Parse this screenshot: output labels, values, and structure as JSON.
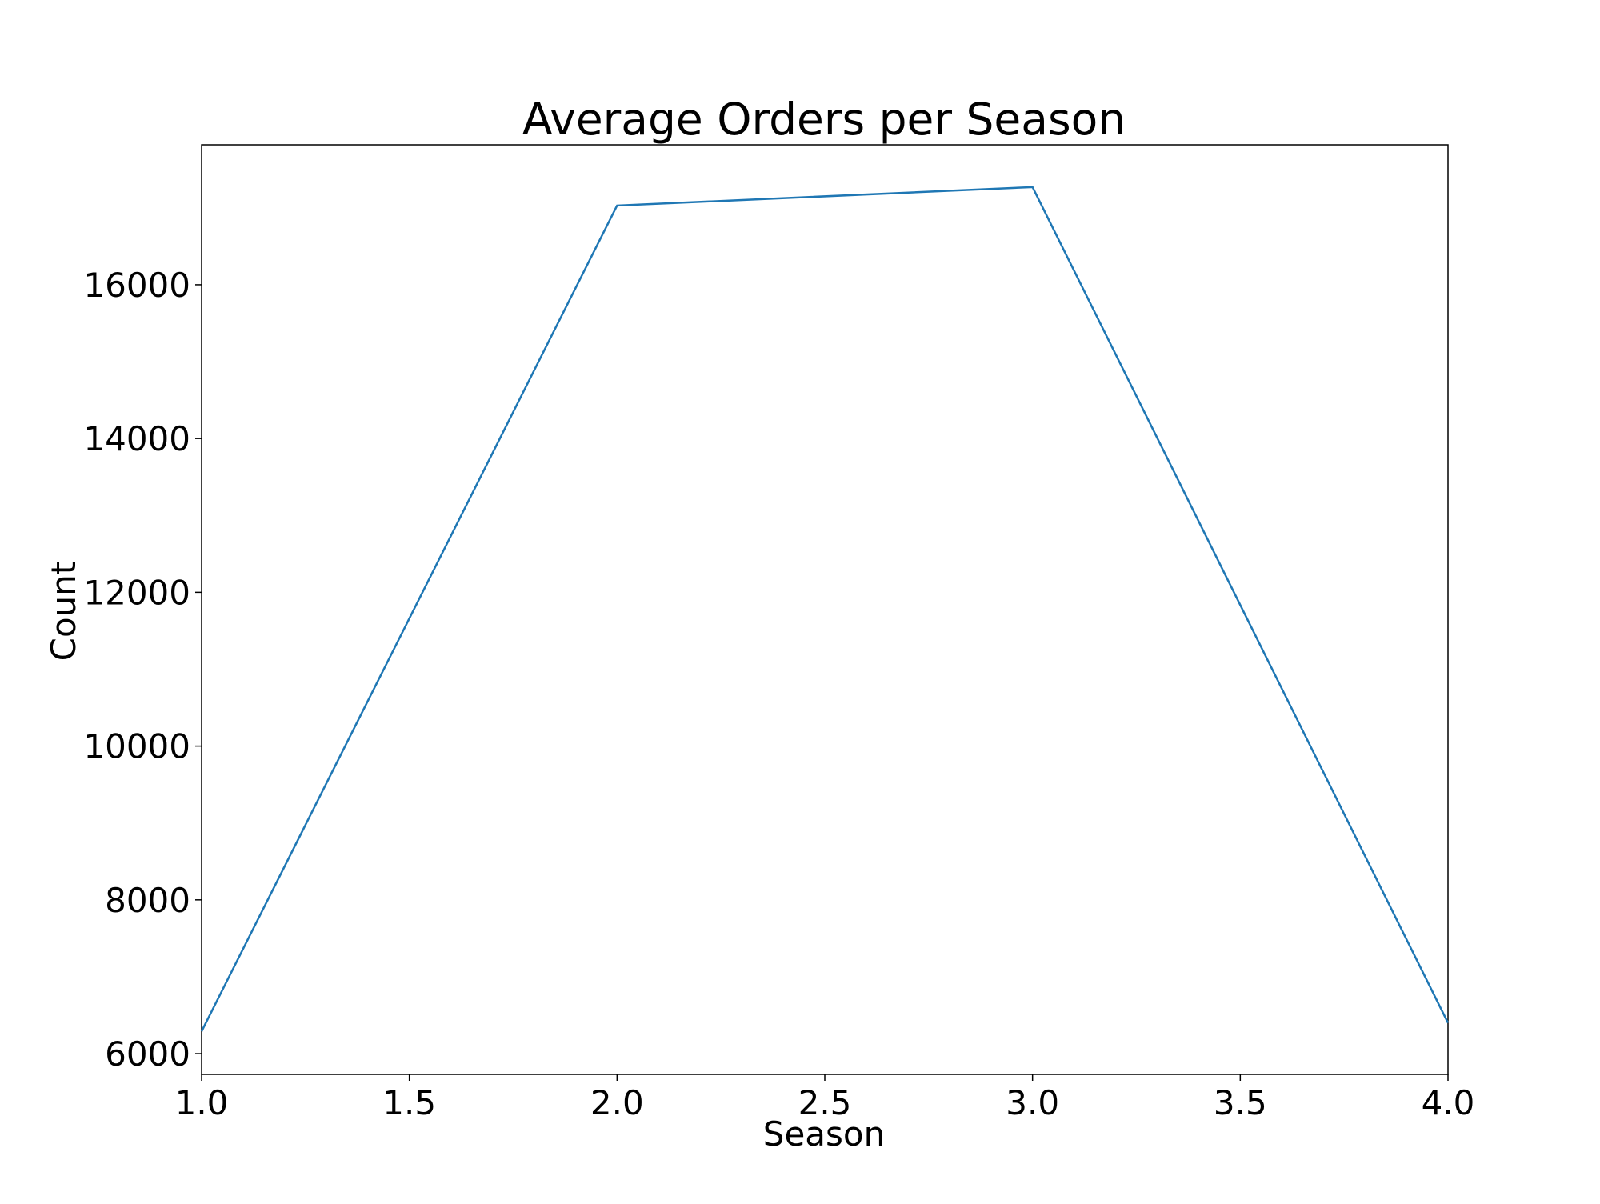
{
  "colors": {
    "line": "#1f77b4",
    "axis": "#000000",
    "background": "#ffffff"
  },
  "chart_data": {
    "type": "line",
    "title": "Average Orders per Season",
    "xlabel": "Season",
    "ylabel": "Count",
    "grid": false,
    "legend": "none",
    "xlim": [
      1.0,
      4.0
    ],
    "ylim": [
      5730,
      17820
    ],
    "xticks": [
      "1.0",
      "1.5",
      "2.0",
      "2.5",
      "3.0",
      "3.5",
      "4.0"
    ],
    "yticks": [
      "6000",
      "8000",
      "10000",
      "12000",
      "14000",
      "16000"
    ],
    "series": [
      {
        "x": [
          1,
          2,
          3,
          4
        ],
        "values": [
          6290,
          17030,
          17270,
          6400
        ]
      }
    ]
  }
}
